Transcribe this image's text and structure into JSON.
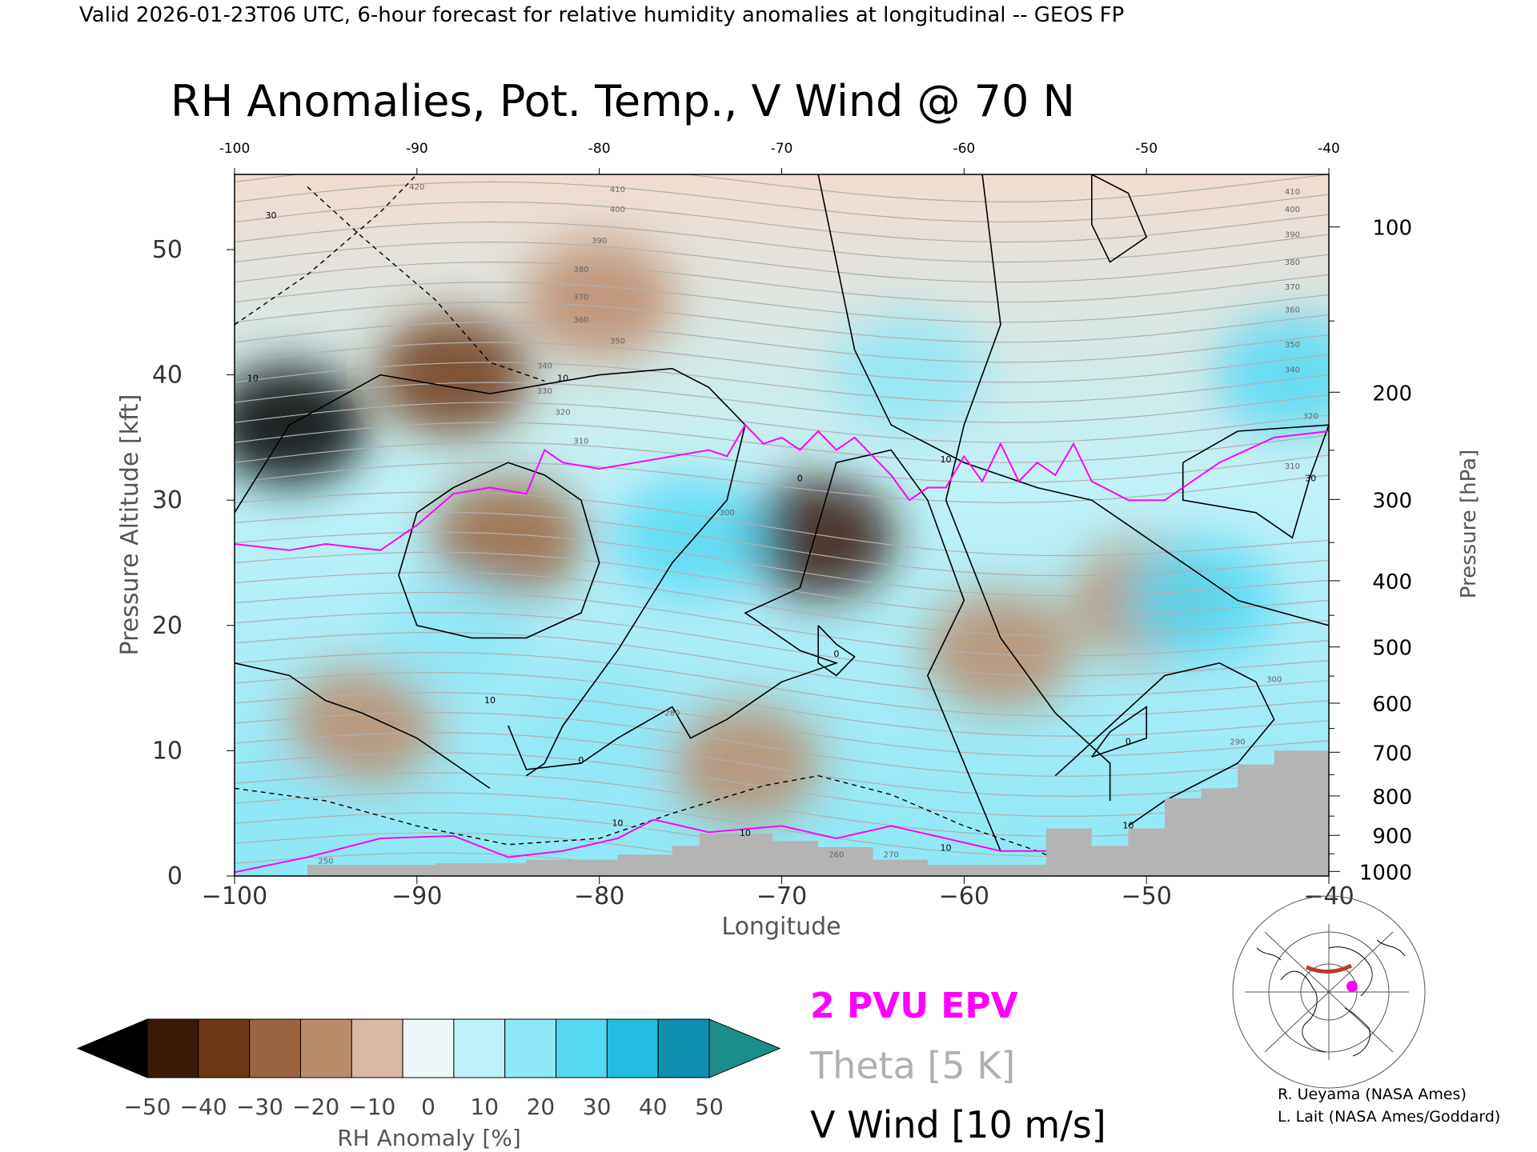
{
  "header": {
    "valid_line": "Valid 2026-01-23T06 UTC, 6-hour forecast for relative humidity anomalies at longitudinal -- GEOS FP"
  },
  "chart_data": {
    "type": "heatmap",
    "title": "RH Anomalies, Pot. Temp., V Wind @ 70 N",
    "xlabel": "Longitude",
    "ylabel": "Pressure Altitude [kft]",
    "y2label": "Pressure [hPa]",
    "xlim": [
      -100,
      -40
    ],
    "ylim": [
      0,
      56
    ],
    "x_ticks": [
      -100,
      -90,
      -80,
      -70,
      -60,
      -50,
      -40
    ],
    "x_tick_labels": [
      "−100",
      "−90",
      "−80",
      "−70",
      "−60",
      "−50",
      "−40"
    ],
    "top_tick_labels": [
      "-100",
      "-90",
      "-80",
      "-70",
      "-60",
      "-50",
      "-40"
    ],
    "y_ticks": [
      0,
      10,
      20,
      30,
      40,
      50
    ],
    "pressure_ticks": [
      {
        "hpa": 100,
        "label": "100"
      },
      {
        "hpa": 200,
        "label": "200"
      },
      {
        "hpa": 300,
        "label": "300"
      },
      {
        "hpa": 400,
        "label": "400"
      },
      {
        "hpa": 500,
        "label": "500"
      },
      {
        "hpa": 600,
        "label": "600"
      },
      {
        "hpa": 700,
        "label": "700"
      },
      {
        "hpa": 800,
        "label": "800"
      },
      {
        "hpa": 900,
        "label": "900"
      },
      {
        "hpa": 1000,
        "label": "1000"
      }
    ],
    "colorbar": {
      "label": "RH Anomaly [%]",
      "ticks": [
        -50,
        -40,
        -30,
        -20,
        -10,
        0,
        10,
        20,
        30,
        40,
        50
      ],
      "tick_labels": [
        "−50",
        "−40",
        "−30",
        "−20",
        "−10",
        "0",
        "10",
        "20",
        "30",
        "40",
        "50"
      ],
      "colors": [
        "#3a1a08",
        "#6e3818",
        "#9a6440",
        "#bb8c6c",
        "#d8b8a4",
        "#eef8f8",
        "#bff2f8",
        "#8ee8f6",
        "#55d8f2",
        "#22bce0",
        "#0d8fb0"
      ],
      "under_color": "#000000",
      "over_color": "#1b8e8a"
    },
    "rh_anomaly_features": [
      {
        "lon": -97,
        "kft": 36,
        "value": -60
      },
      {
        "lon": -88,
        "kft": 40,
        "value": -40
      },
      {
        "lon": -80,
        "kft": 46,
        "value": -15
      },
      {
        "lon": -85,
        "kft": 27,
        "value": -25
      },
      {
        "lon": -68,
        "kft": 27,
        "value": -45
      },
      {
        "lon": -58,
        "kft": 18,
        "value": -20
      },
      {
        "lon": -50,
        "kft": 22,
        "value": -15
      },
      {
        "lon": -93,
        "kft": 12,
        "value": -20
      },
      {
        "lon": -72,
        "kft": 9,
        "value": -20
      },
      {
        "lon": -88,
        "kft": 19,
        "value": 25
      },
      {
        "lon": -75,
        "kft": 27,
        "value": 30
      },
      {
        "lon": -63,
        "kft": 40,
        "value": 25
      },
      {
        "lon": -42,
        "kft": 40,
        "value": 35
      },
      {
        "lon": -47,
        "kft": 22,
        "value": 30
      },
      {
        "lon": -98,
        "kft": 5,
        "value": 25
      },
      {
        "lon": -80,
        "kft": 12,
        "value": 25
      }
    ],
    "legend": {
      "epv_label": "2 PVU EPV",
      "epv_color": "#ff00ff",
      "theta_label": "Theta [5 K]",
      "theta_color": "#b0b0b0",
      "vwind_label": "V Wind [10 m/s]",
      "vwind_color": "#000000"
    },
    "epv_2pvu": [
      [
        -100,
        26.5
      ],
      [
        -97,
        26
      ],
      [
        -95,
        26.5
      ],
      [
        -92,
        26
      ],
      [
        -90,
        28
      ],
      [
        -88,
        30.5
      ],
      [
        -86,
        31
      ],
      [
        -84,
        30.5
      ],
      [
        -83,
        34
      ],
      [
        -82,
        33
      ],
      [
        -80,
        32.5
      ],
      [
        -78,
        33
      ],
      [
        -76,
        33.5
      ],
      [
        -74,
        34
      ],
      [
        -73,
        33.5
      ],
      [
        -72,
        36
      ],
      [
        -71,
        34.5
      ],
      [
        -70,
        35
      ],
      [
        -69,
        34
      ],
      [
        -68,
        35.5
      ],
      [
        -67,
        34
      ],
      [
        -66,
        35
      ],
      [
        -65,
        33.5
      ],
      [
        -64,
        32
      ],
      [
        -63,
        30
      ],
      [
        -62,
        31
      ],
      [
        -61,
        31
      ],
      [
        -60,
        33.5
      ],
      [
        -59,
        31.5
      ],
      [
        -58,
        34.5
      ],
      [
        -57,
        31.5
      ],
      [
        -56,
        33
      ],
      [
        -55,
        32
      ],
      [
        -54,
        34.5
      ],
      [
        -53,
        31.5
      ],
      [
        -51,
        30
      ],
      [
        -49,
        30
      ],
      [
        -46,
        33
      ],
      [
        -43,
        35
      ],
      [
        -40,
        35.5
      ]
    ],
    "theta_labels": [
      {
        "lon": -90,
        "kft": 54.8,
        "label": "420"
      },
      {
        "lon": -79,
        "kft": 54.6,
        "label": "410"
      },
      {
        "lon": -79,
        "kft": 53,
        "label": "400"
      },
      {
        "lon": -80,
        "kft": 50.5,
        "label": "390"
      },
      {
        "lon": -81,
        "kft": 48.2,
        "label": "380"
      },
      {
        "lon": -81,
        "kft": 46,
        "label": "370"
      },
      {
        "lon": -81,
        "kft": 44.2,
        "label": "360"
      },
      {
        "lon": -79,
        "kft": 42.5,
        "label": "350"
      },
      {
        "lon": -83,
        "kft": 40.5,
        "label": "340"
      },
      {
        "lon": -83,
        "kft": 38.5,
        "label": "330"
      },
      {
        "lon": -82,
        "kft": 36.8,
        "label": "320"
      },
      {
        "lon": -81,
        "kft": 34.5,
        "label": "310"
      },
      {
        "lon": -73,
        "kft": 28.8,
        "label": "300"
      },
      {
        "lon": -76,
        "kft": 12.8,
        "label": "280"
      },
      {
        "lon": -64,
        "kft": 1.5,
        "label": "270"
      },
      {
        "lon": -67,
        "kft": 1.5,
        "label": "260"
      },
      {
        "lon": -95,
        "kft": 1,
        "label": "250"
      },
      {
        "lon": -42,
        "kft": 54.4,
        "label": "410"
      },
      {
        "lon": -42,
        "kft": 53,
        "label": "400"
      },
      {
        "lon": -42,
        "kft": 51,
        "label": "390"
      },
      {
        "lon": -42,
        "kft": 48.8,
        "label": "380"
      },
      {
        "lon": -42,
        "kft": 46.8,
        "label": "370"
      },
      {
        "lon": -42,
        "kft": 45,
        "label": "360"
      },
      {
        "lon": -42,
        "kft": 42.2,
        "label": "350"
      },
      {
        "lon": -42,
        "kft": 40.2,
        "label": "340"
      },
      {
        "lon": -41,
        "kft": 36.5,
        "label": "320"
      },
      {
        "lon": -42,
        "kft": 32.5,
        "label": "310"
      },
      {
        "lon": -43,
        "kft": 15.5,
        "label": "300"
      },
      {
        "lon": -45,
        "kft": 10.5,
        "label": "290"
      }
    ],
    "vwind_labels": [
      {
        "lon": -98,
        "kft": 52.5,
        "label": "30"
      },
      {
        "lon": -99,
        "kft": 39.5,
        "label": "10"
      },
      {
        "lon": -82,
        "kft": 39.5,
        "label": "10"
      },
      {
        "lon": -61,
        "kft": 33,
        "label": "10"
      },
      {
        "lon": -69,
        "kft": 31.5,
        "label": "0"
      },
      {
        "lon": -86,
        "kft": 13.8,
        "label": "10"
      },
      {
        "lon": -81,
        "kft": 9,
        "label": "0"
      },
      {
        "lon": -67,
        "kft": 17.5,
        "label": "0"
      },
      {
        "lon": -51,
        "kft": 10.5,
        "label": "0"
      },
      {
        "lon": -41,
        "kft": 31.5,
        "label": "30"
      },
      {
        "lon": -79,
        "kft": 4,
        "label": "10"
      },
      {
        "lon": -72,
        "kft": 3.2,
        "label": "10"
      },
      {
        "lon": -61,
        "kft": 2,
        "label": "10"
      },
      {
        "lon": -51,
        "kft": 3.8,
        "label": "10"
      }
    ],
    "terrain_kft": [
      [
        -96,
        0.9
      ],
      [
        -91,
        0.9
      ],
      [
        -89,
        1.0
      ],
      [
        -84,
        1.3
      ],
      [
        -79,
        1.7
      ],
      [
        -76,
        2.4
      ],
      [
        -74.5,
        3.4
      ],
      [
        -70.5,
        2.8
      ],
      [
        -68,
        2.3
      ],
      [
        -65,
        1.3
      ],
      [
        -62,
        0.9
      ],
      [
        -58,
        0.9
      ],
      [
        -55.5,
        3.8
      ],
      [
        -53,
        2.4
      ],
      [
        -51,
        3.8
      ],
      [
        -49,
        6.2
      ],
      [
        -47,
        7.0
      ],
      [
        -45,
        8.9
      ],
      [
        -43,
        10.0
      ],
      [
        -40,
        11.9
      ]
    ]
  },
  "credits": {
    "line1": "R. Ueyama (NASA Ames)",
    "line2": "L. Lait (NASA Ames/Goddard)"
  },
  "inset_map": {
    "marker_color": "#ff00ff",
    "section_color": "#c0392b"
  }
}
